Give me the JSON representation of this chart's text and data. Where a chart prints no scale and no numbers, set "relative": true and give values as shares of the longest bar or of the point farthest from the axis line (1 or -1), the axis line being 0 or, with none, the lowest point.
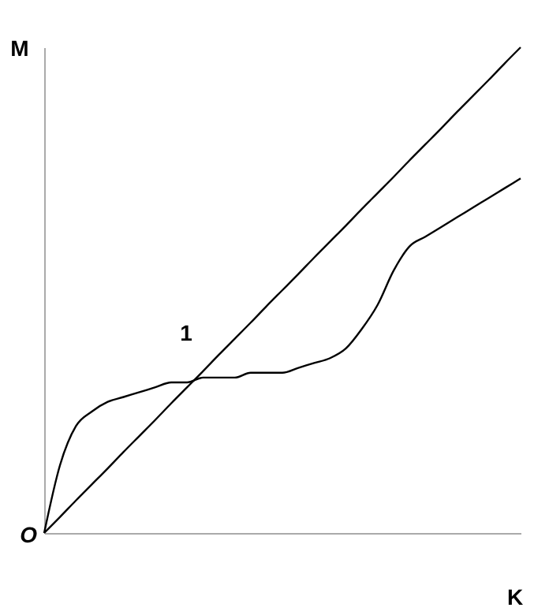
{
  "chart_data": {
    "type": "line",
    "relative": true,
    "xlabel": "K",
    "ylabel": "M",
    "annotations": [
      "1",
      "O"
    ],
    "categories": [
      null,
      null,
      null,
      null,
      null,
      null,
      null,
      null,
      null,
      null,
      null,
      null,
      null,
      null,
      null,
      null,
      null,
      null,
      null,
      null,
      null,
      null,
      null,
      null,
      null,
      null,
      null,
      null,
      null,
      null,
      null
    ],
    "series": [
      {
        "color": "#000000",
        "values": [
          0,
          0.033,
          0.067,
          0.1,
          0.133,
          0.167,
          0.2,
          0.233,
          0.267,
          0.3,
          0.333,
          0.367,
          0.4,
          0.433,
          0.467,
          0.5,
          0.533,
          0.567,
          0.6,
          0.633,
          0.667,
          0.7,
          0.733,
          0.767,
          0.8,
          0.833,
          0.867,
          0.9,
          0.933,
          0.967,
          1
        ]
      },
      {
        "color": "#000000",
        "values": [
          0,
          0.14,
          0.22,
          0.25,
          0.27,
          0.28,
          0.29,
          0.3,
          0.31,
          0.31,
          0.32,
          0.32,
          0.32,
          0.33,
          0.33,
          0.33,
          0.34,
          0.35,
          0.36,
          0.38,
          0.42,
          0.47,
          0.54,
          0.59,
          0.61,
          0.63,
          0.65,
          0.67,
          0.69,
          0.71,
          0.73
        ]
      }
    ],
    "grid": false,
    "line_style": "solid",
    "marker": "none"
  }
}
